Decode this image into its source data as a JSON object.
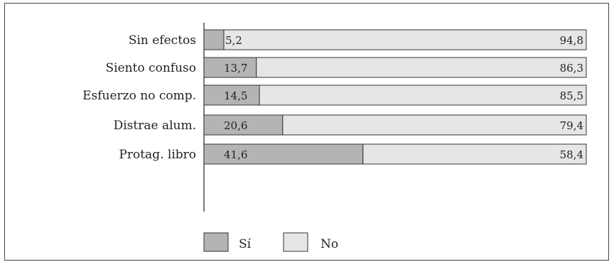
{
  "chart_data": {
    "type": "bar",
    "stacked": "100%",
    "orientation": "horizontal",
    "categories": [
      "Sin efectos",
      "Siento confuso",
      "Esfuerzo no comp.",
      "Distrae alum.",
      "Protag. libro"
    ],
    "series": [
      {
        "name": "Sí",
        "values": [
          5.2,
          13.7,
          14.5,
          20.6,
          41.6
        ],
        "value_labels": [
          "5,2",
          "13,7",
          "14,5",
          "20,6",
          "41,6"
        ]
      },
      {
        "name": "No",
        "values": [
          94.8,
          86.3,
          85.5,
          79.4,
          58.4
        ],
        "value_labels": [
          "94,8",
          "86,3",
          "85,5",
          "79,4",
          "58,4"
        ]
      }
    ],
    "title": "",
    "xlabel": "",
    "ylabel": "",
    "xlim": [
      0,
      100
    ],
    "grid": false,
    "legend": "bottom-center",
    "colors": {
      "Sí": "#b4b4b4",
      "No": "#e6e6e6",
      "stroke": "#333333"
    }
  }
}
